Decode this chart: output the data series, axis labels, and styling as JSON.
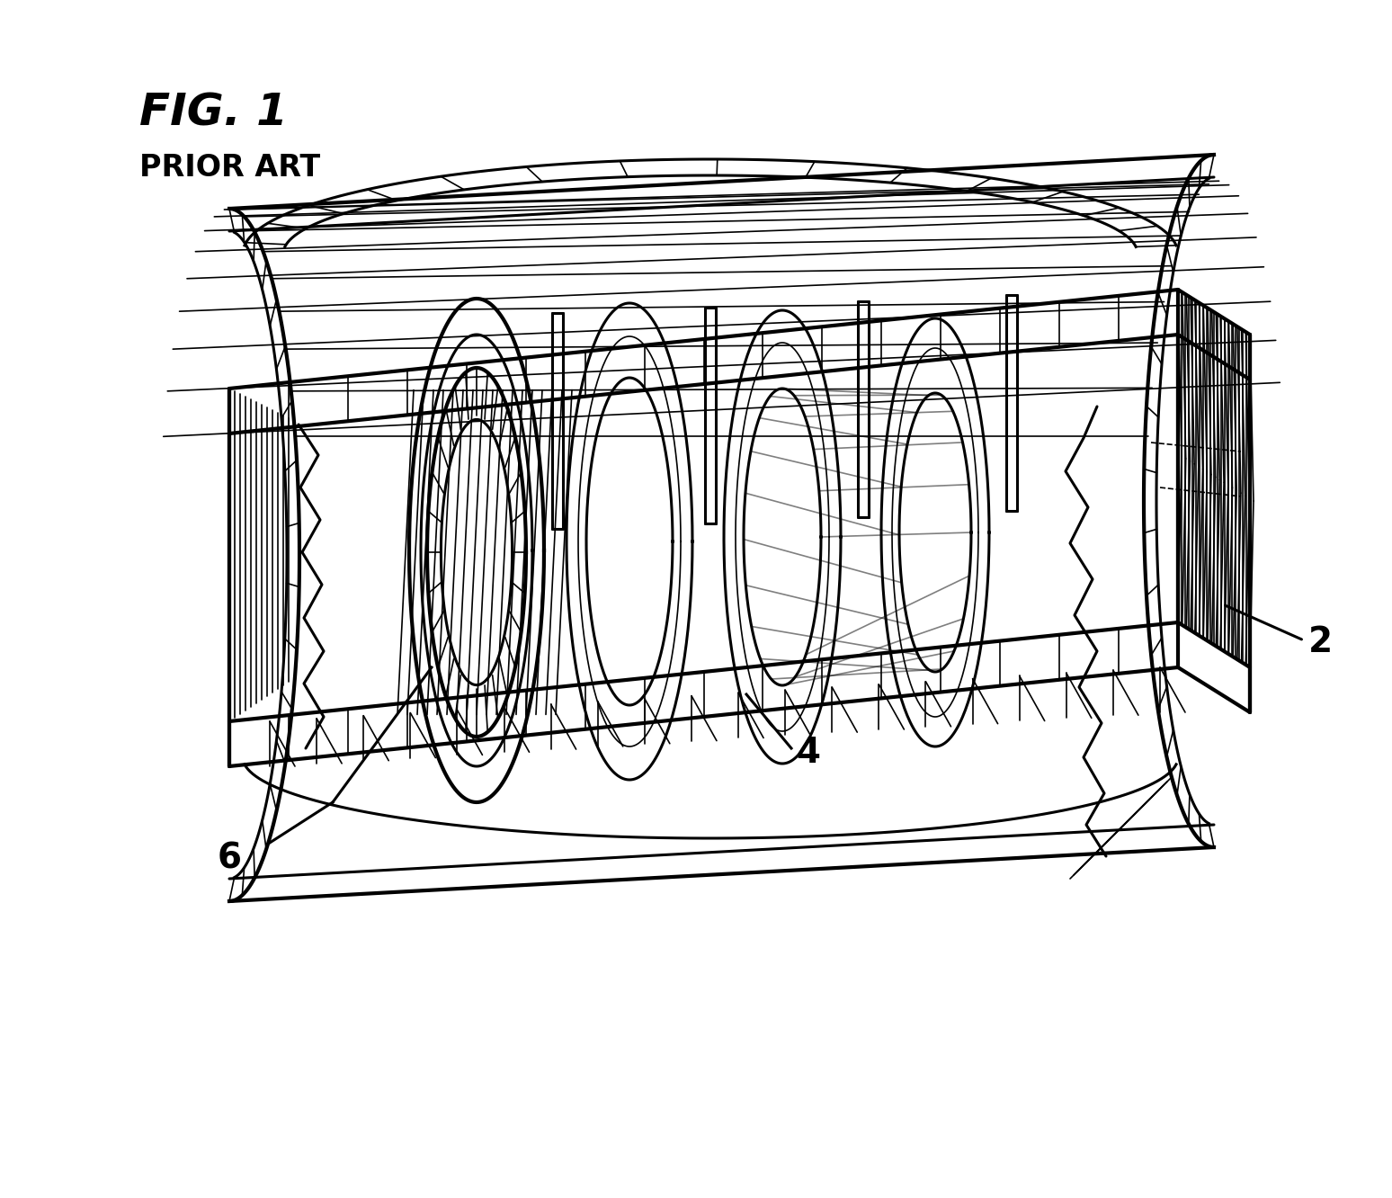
{
  "title": "FIG. 1",
  "subtitle": "PRIOR ART",
  "label_2": "2",
  "label_4": "4",
  "label_6": "6",
  "bg_color": "#ffffff",
  "line_color": "#000000",
  "title_fontsize": 36,
  "subtitle_fontsize": 24,
  "label_fontsize": 28,
  "fig_width": 15.48,
  "fig_height": 13.32
}
